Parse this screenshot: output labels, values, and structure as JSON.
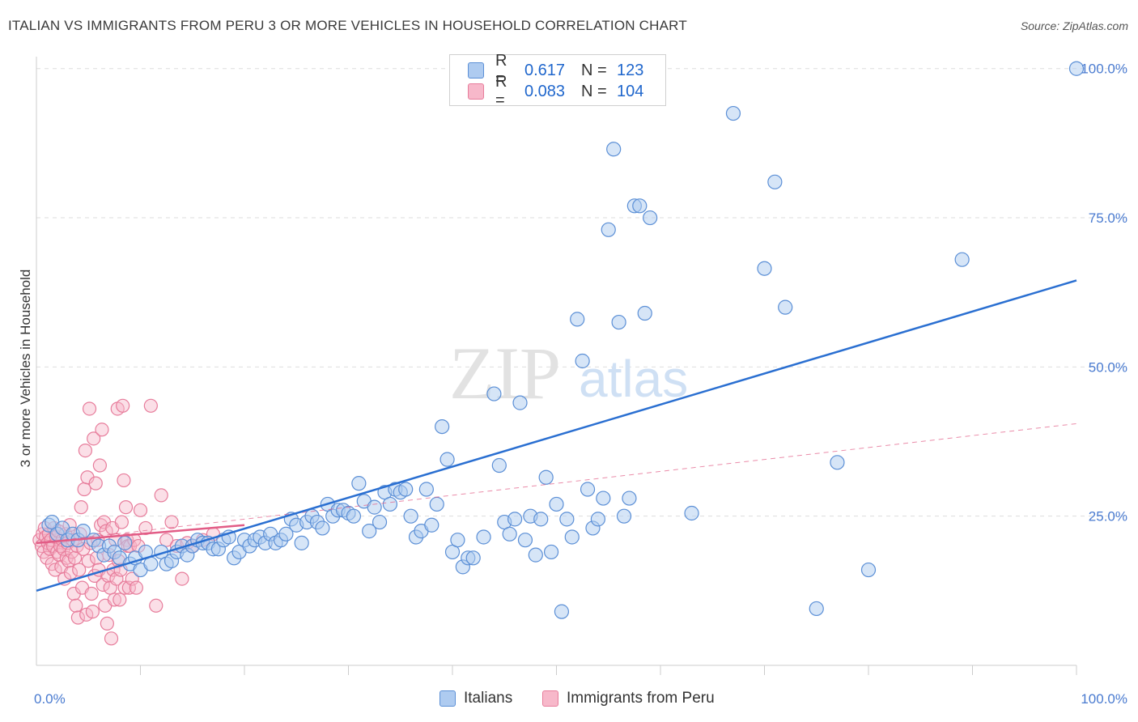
{
  "title": "ITALIAN VS IMMIGRANTS FROM PERU 3 OR MORE VEHICLES IN HOUSEHOLD CORRELATION CHART",
  "source": "Source: ZipAtlas.com",
  "watermark": {
    "zip": "ZIP",
    "atlas": "atlas"
  },
  "legend": {
    "rows": [
      {
        "r_label": "R =",
        "r_value": "0.617",
        "n_label": "N =",
        "n_value": "123"
      },
      {
        "r_label": "R =",
        "r_value": "0.083",
        "n_label": "N =",
        "n_value": "104"
      }
    ]
  },
  "bottom_legend": [
    "Italians",
    "Immigrants from Peru"
  ],
  "colors": {
    "italians_fill": "#aecbf0",
    "italians_stroke": "#5b8fd6",
    "italians_line": "#2a6fd1",
    "peru_fill": "#f7b8ca",
    "peru_stroke": "#e77c9b",
    "peru_line": "#e25c86",
    "tick_text": "#4a7bd0",
    "grid": "#dddddd"
  },
  "chart_data": {
    "type": "scatter",
    "title": "ITALIAN VS IMMIGRANTS FROM PERU 3 OR MORE VEHICLES IN HOUSEHOLD CORRELATION CHART",
    "xlabel": "",
    "ylabel": "3 or more Vehicles in Household",
    "xlim": [
      0,
      100
    ],
    "ylim": [
      0,
      102
    ],
    "x_tick_labels": [
      "0.0%",
      "100.0%"
    ],
    "y_tick_labels": [
      "25.0%",
      "50.0%",
      "75.0%",
      "100.0%"
    ],
    "y_ticks": [
      25,
      50,
      75,
      100
    ],
    "grid": true,
    "legend_position": "top-center",
    "series": [
      {
        "name": "Italians",
        "r": 0.617,
        "n": 123,
        "trend": [
          [
            0,
            12.5
          ],
          [
            100,
            64.5
          ]
        ],
        "points": [
          [
            1.2,
            23.5
          ],
          [
            1.5,
            24
          ],
          [
            2,
            22
          ],
          [
            2.5,
            23
          ],
          [
            3,
            21
          ],
          [
            3.5,
            22
          ],
          [
            4,
            21
          ],
          [
            4.5,
            22.5
          ],
          [
            5.5,
            21
          ],
          [
            6,
            20
          ],
          [
            6.5,
            18.5
          ],
          [
            7,
            20
          ],
          [
            7.5,
            19
          ],
          [
            8,
            18
          ],
          [
            8.5,
            20.5
          ],
          [
            9,
            17
          ],
          [
            9.5,
            18
          ],
          [
            10,
            16
          ],
          [
            10.5,
            19
          ],
          [
            11,
            17
          ],
          [
            12,
            19
          ],
          [
            12.5,
            17
          ],
          [
            13,
            17.5
          ],
          [
            13.5,
            19
          ],
          [
            14,
            20
          ],
          [
            14.5,
            18.5
          ],
          [
            15,
            20
          ],
          [
            15.5,
            21
          ],
          [
            16,
            20.5
          ],
          [
            16.5,
            20.5
          ],
          [
            17,
            19.5
          ],
          [
            17.5,
            19.5
          ],
          [
            18,
            21
          ],
          [
            18.5,
            21.5
          ],
          [
            19,
            18
          ],
          [
            19.5,
            19
          ],
          [
            20,
            21
          ],
          [
            20.5,
            20
          ],
          [
            21,
            21
          ],
          [
            21.5,
            21.5
          ],
          [
            22,
            20.5
          ],
          [
            22.5,
            22
          ],
          [
            23,
            20.5
          ],
          [
            23.5,
            21
          ],
          [
            24,
            22
          ],
          [
            24.5,
            24.5
          ],
          [
            25,
            23.5
          ],
          [
            25.5,
            20.5
          ],
          [
            26,
            24
          ],
          [
            26.5,
            25
          ],
          [
            27,
            24
          ],
          [
            27.5,
            23
          ],
          [
            28,
            27
          ],
          [
            28.5,
            25
          ],
          [
            29,
            26
          ],
          [
            29.5,
            26
          ],
          [
            30,
            25.5
          ],
          [
            30.5,
            25
          ],
          [
            31,
            30.5
          ],
          [
            31.5,
            27.5
          ],
          [
            32,
            22.5
          ],
          [
            32.5,
            26.5
          ],
          [
            33,
            24
          ],
          [
            33.5,
            29
          ],
          [
            34,
            27
          ],
          [
            34.5,
            29.5
          ],
          [
            35,
            29
          ],
          [
            35.5,
            29.5
          ],
          [
            36,
            25
          ],
          [
            36.5,
            21.5
          ],
          [
            37,
            22.5
          ],
          [
            37.5,
            29.5
          ],
          [
            38,
            23.5
          ],
          [
            38.5,
            27
          ],
          [
            39,
            40
          ],
          [
            39.5,
            34.5
          ],
          [
            40,
            19
          ],
          [
            40.5,
            21
          ],
          [
            41,
            16.5
          ],
          [
            41.5,
            18
          ],
          [
            42,
            18
          ],
          [
            43,
            21.5
          ],
          [
            44,
            45.5
          ],
          [
            44.5,
            33.5
          ],
          [
            45,
            24
          ],
          [
            45.5,
            22
          ],
          [
            46,
            24.5
          ],
          [
            46.5,
            44
          ],
          [
            47,
            21
          ],
          [
            47.5,
            25
          ],
          [
            48,
            18.5
          ],
          [
            48.5,
            24.5
          ],
          [
            49,
            31.5
          ],
          [
            49.5,
            19
          ],
          [
            50,
            27
          ],
          [
            50.5,
            9
          ],
          [
            51,
            24.5
          ],
          [
            51.5,
            21.5
          ],
          [
            52,
            58
          ],
          [
            52.5,
            51
          ],
          [
            53,
            29.5
          ],
          [
            53.5,
            23
          ],
          [
            54,
            24.5
          ],
          [
            54.5,
            28
          ],
          [
            55,
            73
          ],
          [
            55.5,
            86.5
          ],
          [
            56,
            57.5
          ],
          [
            56.5,
            25
          ],
          [
            57,
            28
          ],
          [
            57.5,
            77
          ],
          [
            58,
            77
          ],
          [
            58.5,
            59
          ],
          [
            59,
            75
          ],
          [
            63,
            25.5
          ],
          [
            67,
            92.5
          ],
          [
            70,
            66.5
          ],
          [
            71,
            81
          ],
          [
            72,
            60
          ],
          [
            75,
            9.5
          ],
          [
            77,
            34
          ],
          [
            80,
            16
          ],
          [
            89,
            68
          ],
          [
            100,
            100
          ]
        ]
      },
      {
        "name": "Immigrants from Peru",
        "r": 0.083,
        "n": 104,
        "trend": [
          [
            0,
            20.5
          ],
          [
            20,
            23.5
          ]
        ],
        "trend_extended": [
          [
            0,
            20.5
          ],
          [
            100,
            40.5
          ]
        ],
        "points": [
          [
            0.3,
            21
          ],
          [
            0.5,
            20
          ],
          [
            0.6,
            22
          ],
          [
            0.7,
            19
          ],
          [
            0.8,
            23
          ],
          [
            0.9,
            21.5
          ],
          [
            1,
            18
          ],
          [
            1.1,
            20.5
          ],
          [
            1.2,
            22
          ],
          [
            1.3,
            19.5
          ],
          [
            1.4,
            21
          ],
          [
            1.5,
            17
          ],
          [
            1.6,
            20
          ],
          [
            1.7,
            23
          ],
          [
            1.8,
            16
          ],
          [
            1.9,
            21.5
          ],
          [
            2,
            19
          ],
          [
            2.1,
            22.5
          ],
          [
            2.2,
            18.5
          ],
          [
            2.3,
            20
          ],
          [
            2.4,
            16.5
          ],
          [
            2.5,
            21
          ],
          [
            2.6,
            19.5
          ],
          [
            2.7,
            14.5
          ],
          [
            2.8,
            22
          ],
          [
            2.9,
            18
          ],
          [
            3,
            20.5
          ],
          [
            3.1,
            17.5
          ],
          [
            3.2,
            23.5
          ],
          [
            3.3,
            15.5
          ],
          [
            3.4,
            19
          ],
          [
            3.5,
            21
          ],
          [
            3.6,
            12
          ],
          [
            3.7,
            18
          ],
          [
            3.8,
            10
          ],
          [
            3.9,
            20
          ],
          [
            4,
            8
          ],
          [
            4.1,
            16
          ],
          [
            4.2,
            22
          ],
          [
            4.3,
            26.5
          ],
          [
            4.4,
            13
          ],
          [
            4.5,
            19.5
          ],
          [
            4.6,
            29.5
          ],
          [
            4.7,
            36
          ],
          [
            4.8,
            8.5
          ],
          [
            4.9,
            31.5
          ],
          [
            5,
            17.5
          ],
          [
            5.1,
            43
          ],
          [
            5.2,
            20.5
          ],
          [
            5.3,
            12
          ],
          [
            5.4,
            9
          ],
          [
            5.5,
            38
          ],
          [
            5.6,
            15
          ],
          [
            5.7,
            30.5
          ],
          [
            5.8,
            18
          ],
          [
            5.9,
            21
          ],
          [
            6,
            16
          ],
          [
            6.1,
            33.5
          ],
          [
            6.2,
            23.5
          ],
          [
            6.3,
            39.5
          ],
          [
            6.4,
            13.5
          ],
          [
            6.5,
            24
          ],
          [
            6.6,
            10
          ],
          [
            6.7,
            22.5
          ],
          [
            6.8,
            7
          ],
          [
            6.9,
            15
          ],
          [
            7,
            18.5
          ],
          [
            7.1,
            13
          ],
          [
            7.2,
            4.5
          ],
          [
            7.3,
            23
          ],
          [
            7.4,
            16
          ],
          [
            7.5,
            11
          ],
          [
            7.6,
            21
          ],
          [
            7.7,
            14.5
          ],
          [
            7.8,
            43
          ],
          [
            7.9,
            17.5
          ],
          [
            8,
            11
          ],
          [
            8.1,
            16
          ],
          [
            8.2,
            24
          ],
          [
            8.3,
            43.5
          ],
          [
            8.4,
            31
          ],
          [
            8.5,
            13
          ],
          [
            8.6,
            26.5
          ],
          [
            8.7,
            21
          ],
          [
            8.8,
            20
          ],
          [
            8.9,
            13
          ],
          [
            9,
            20
          ],
          [
            9.2,
            14.5
          ],
          [
            9.4,
            21
          ],
          [
            9.6,
            13
          ],
          [
            9.8,
            20
          ],
          [
            10,
            26
          ],
          [
            10.5,
            23
          ],
          [
            11,
            43.5
          ],
          [
            11.5,
            10
          ],
          [
            12,
            28.5
          ],
          [
            12.5,
            21
          ],
          [
            13,
            24
          ],
          [
            13.5,
            20
          ],
          [
            14,
            14.5
          ],
          [
            14.5,
            20.5
          ],
          [
            15,
            20
          ],
          [
            16,
            21
          ],
          [
            17,
            22
          ]
        ]
      }
    ]
  }
}
